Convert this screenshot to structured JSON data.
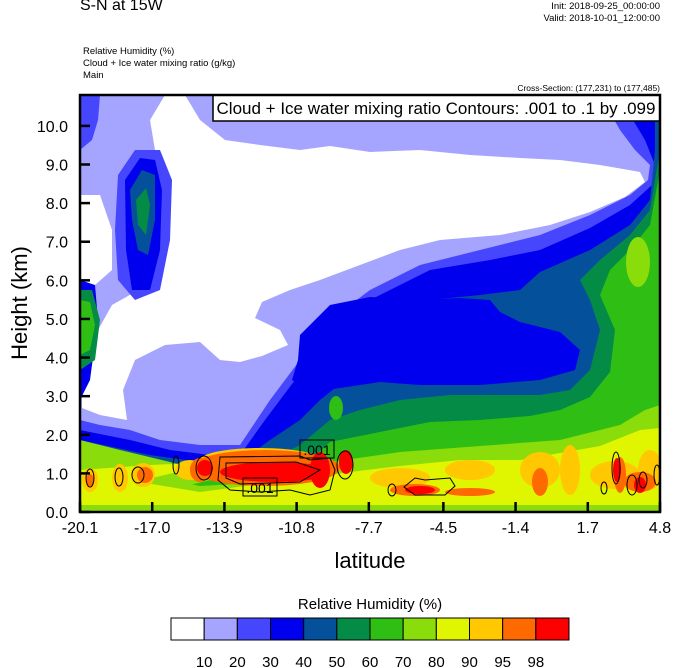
{
  "header": {
    "title": "S-N at 15W",
    "init": "Init: 2018-09-25_00:00:00",
    "valid": "Valid: 2018-10-01_12:00:00",
    "fields": [
      "Relative Humidity   (%)",
      "Cloud + Ice water mixing ratio   (g/kg)",
      "Main"
    ],
    "cross_section": "Cross-Section: (177,231) to (177,485)"
  },
  "chart_data": {
    "type": "heatmap",
    "subtype": "filled contour cross-section with line contour overlay",
    "xlabel": "latitude",
    "ylabel": "Height (km)",
    "xlim": [
      -20.1,
      4.8
    ],
    "ylim": [
      0.0,
      10.8
    ],
    "xticks": [
      "-20.1",
      "-17.0",
      "-13.9",
      "-10.8",
      "-7.7",
      "-4.5",
      "-1.4",
      "1.7",
      "4.8"
    ],
    "xtick_values": [
      -20.1,
      -17.0,
      -13.9,
      -10.8,
      -7.7,
      -4.5,
      -1.4,
      1.7,
      4.8
    ],
    "yticks": [
      "0.0",
      "1.0",
      "2.0",
      "3.0",
      "4.0",
      "5.0",
      "6.0",
      "7.0",
      "8.0",
      "9.0",
      "10.0"
    ],
    "ytick_values": [
      0,
      1,
      2,
      3,
      4,
      5,
      6,
      7,
      8,
      9,
      10
    ],
    "grid": false,
    "contour_info": "Cloud + Ice water mixing ratio Contours: .001 to .1 by .099",
    "contour_labels": [
      ".001",
      ".001"
    ],
    "colorbar": {
      "title": "Relative Humidity  (%)",
      "levels": [
        "10",
        "20",
        "30",
        "40",
        "50",
        "60",
        "70",
        "80",
        "90",
        "95",
        "98"
      ],
      "colors": [
        "#ffffff",
        "#a5a5ff",
        "#4646ff",
        "#0000ee",
        "#04509a",
        "#048c46",
        "#2fbe14",
        "#8adc0a",
        "#e0f500",
        "#ffc800",
        "#ff6a00",
        "#ff0000"
      ],
      "placement": "bottom"
    }
  }
}
